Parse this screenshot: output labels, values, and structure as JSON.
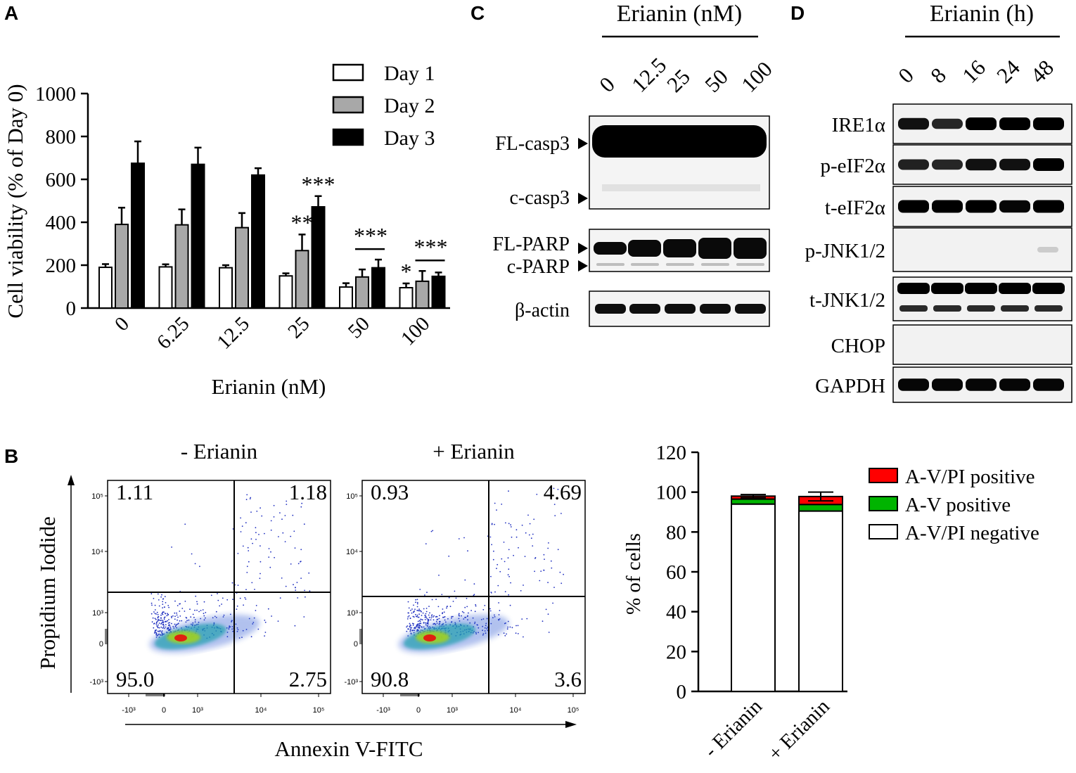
{
  "panels": {
    "a": "A",
    "b": "B",
    "c": "C",
    "d": "D"
  },
  "chart_data": [
    {
      "type": "bar",
      "panel": "A",
      "title": "",
      "xlabel": "Erianin (nM)",
      "ylabel": "Cell viability (% of Day 0)",
      "ylim": [
        0,
        1000
      ],
      "yticks": [
        "0",
        "200",
        "400",
        "600",
        "800",
        "1000"
      ],
      "categories": [
        "0",
        "6.25",
        "12.5",
        "25",
        "50",
        "100"
      ],
      "series": [
        {
          "name": "Day 1",
          "color": "#ffffff",
          "values": [
            190,
            192,
            188,
            150,
            98,
            95
          ],
          "errors": [
            15,
            12,
            12,
            12,
            18,
            20
          ]
        },
        {
          "name": "Day 2",
          "color": "#a8a8a8",
          "values": [
            390,
            388,
            375,
            268,
            145,
            125
          ],
          "errors": [
            78,
            72,
            68,
            75,
            35,
            48
          ]
        },
        {
          "name": "Day 3",
          "color": "#000000",
          "values": [
            675,
            670,
            620,
            472,
            188,
            148
          ],
          "errors": [
            102,
            78,
            32,
            50,
            38,
            18
          ]
        }
      ],
      "annotations": [
        {
          "category": "25",
          "series": "Day 2",
          "text": "**"
        },
        {
          "category": "25",
          "series": "Day 3",
          "text": "***"
        },
        {
          "category": "50",
          "text": "***"
        },
        {
          "category": "100",
          "series": "Day 1",
          "text": "*"
        },
        {
          "category": "100",
          "text": "***"
        }
      ]
    },
    {
      "type": "scatter",
      "panel": "B",
      "plots": [
        {
          "title": "- Erianin",
          "quadrants": {
            "upper_left": "1.11",
            "upper_right": "1.18",
            "lower_left": "95.0",
            "lower_right": "2.75"
          }
        },
        {
          "title": "+ Erianin",
          "quadrants": {
            "upper_left": "0.93",
            "upper_right": "4.69",
            "lower_left": "90.8",
            "lower_right": "3.6"
          }
        }
      ],
      "xlabel": "Annexin V-FITC",
      "ylabel": "Propidium Iodide",
      "xticks": [
        "-10³",
        "0",
        "10³",
        "10⁴",
        "10⁵"
      ],
      "yticks": [
        "-10³",
        "0",
        "10³",
        "10⁴",
        "10⁵"
      ]
    },
    {
      "type": "bar",
      "stacked": true,
      "panel": "B",
      "ylabel": "% of cells",
      "ylim": [
        0,
        120
      ],
      "yticks": [
        "0",
        "20",
        "40",
        "60",
        "80",
        "100",
        "120"
      ],
      "categories": [
        "- Erianin",
        "+ Erianin"
      ],
      "series": [
        {
          "name": "A-V/PI negative",
          "color": "#ffffff",
          "values": [
            94,
            90.5
          ]
        },
        {
          "name": "A-V positive",
          "color": "#00b400",
          "values": [
            2.5,
            3.3
          ]
        },
        {
          "name": "A-V/PI positive",
          "color": "#ff0000",
          "values": [
            1.5,
            4.0
          ]
        }
      ],
      "errors": [
        0.8,
        2.2
      ]
    },
    {
      "type": "table",
      "panel": "C",
      "title": "Erianin (nM)",
      "lanes": [
        "0",
        "12.5",
        "25",
        "50",
        "100"
      ],
      "rows": [
        {
          "labels": [
            "FL-casp3",
            "c-casp3"
          ]
        },
        {
          "labels": [
            "FL-PARP",
            "c-PARP"
          ]
        },
        {
          "labels": [
            "β-actin"
          ]
        }
      ]
    },
    {
      "type": "table",
      "panel": "D",
      "title": "Erianin (h)",
      "lanes": [
        "0",
        "8",
        "16",
        "24",
        "48"
      ],
      "rows": [
        "IRE1α",
        "p-eIF2α",
        "t-eIF2α",
        "p-JNK1/2",
        "t-JNK1/2",
        "CHOP",
        "GAPDH"
      ]
    }
  ]
}
